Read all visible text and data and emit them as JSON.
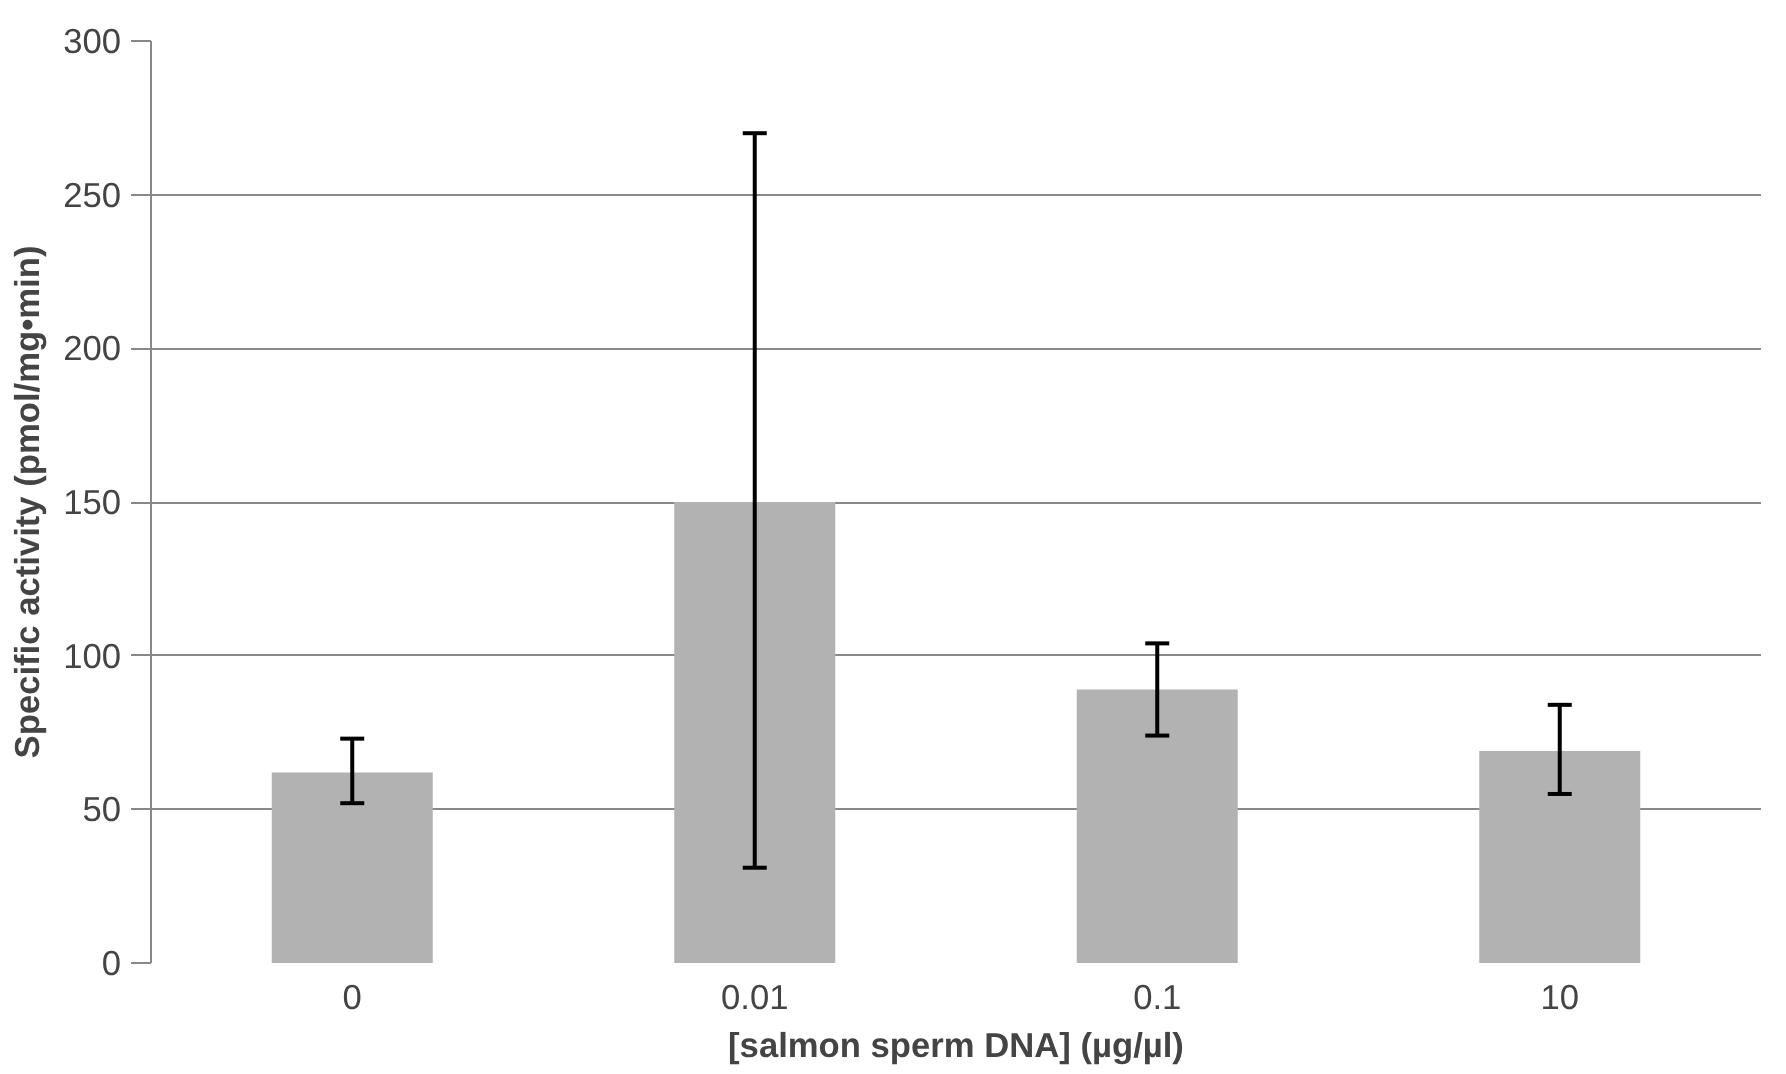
{
  "chart_data": {
    "type": "bar",
    "xlabel": "[salmon sperm DNA] (µg/µl)",
    "ylabel": "Specific activity (pmol/mg•min)",
    "categories": [
      "0",
      "0.01",
      "0.1",
      "10"
    ],
    "values": [
      62,
      150,
      89,
      69
    ],
    "errors": [
      [
        52,
        73
      ],
      [
        31,
        270
      ],
      [
        74,
        104
      ],
      [
        55,
        84
      ]
    ],
    "color": "#b2b2b2",
    "ylim": [
      0,
      300
    ],
    "yticks": [
      0,
      50,
      100,
      150,
      200,
      250,
      300
    ],
    "grid": "y"
  }
}
